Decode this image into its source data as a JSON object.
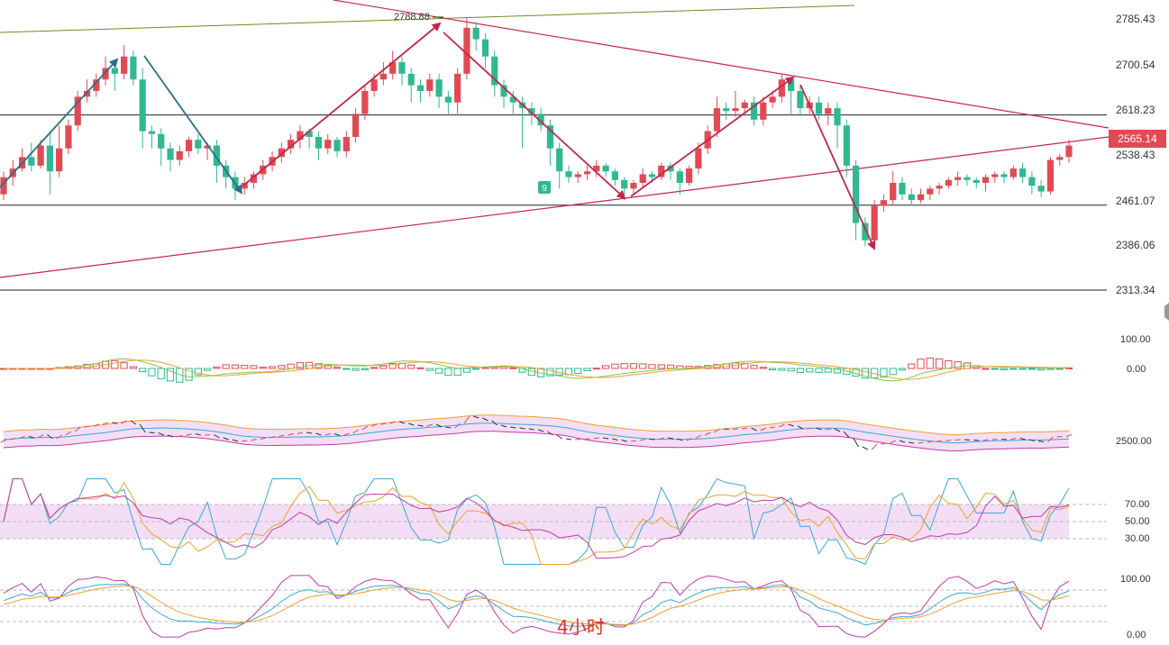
{
  "chart_data": {
    "type": "candlestick",
    "price_axis_ticks": [
      "2785.43",
      "2700.54",
      "2618.23",
      "2538.43",
      "2461.07",
      "2386.06",
      "2313.34"
    ],
    "current_price": "2565.14",
    "peak_label": "2788.88",
    "marker_label": "9",
    "caption": "4小时",
    "colors": {
      "up": "#e04a55",
      "down": "#2fb891",
      "trend": "#c0294a",
      "wave": "#2a6f86",
      "hline": "#222222",
      "current": "#e04a55"
    },
    "horizontal_levels": [
      2618.23,
      2461.07,
      2313.34
    ],
    "candles": [
      [
        2480,
        2510,
        2470,
        2520
      ],
      [
        2510,
        2525,
        2495,
        2540
      ],
      [
        2525,
        2545,
        2520,
        2560
      ],
      [
        2545,
        2530,
        2520,
        2570
      ],
      [
        2530,
        2565,
        2525,
        2575
      ],
      [
        2565,
        2520,
        2480,
        2590
      ],
      [
        2520,
        2560,
        2510,
        2600
      ],
      [
        2560,
        2600,
        2550,
        2610
      ],
      [
        2600,
        2650,
        2590,
        2660
      ],
      [
        2650,
        2660,
        2640,
        2680
      ],
      [
        2660,
        2680,
        2650,
        2690
      ],
      [
        2680,
        2700,
        2670,
        2720
      ],
      [
        2700,
        2690,
        2660,
        2710
      ],
      [
        2690,
        2720,
        2680,
        2740
      ],
      [
        2720,
        2680,
        2670,
        2730
      ],
      [
        2680,
        2590,
        2560,
        2700
      ],
      [
        2590,
        2585,
        2560,
        2600
      ],
      [
        2585,
        2560,
        2530,
        2595
      ],
      [
        2560,
        2540,
        2520,
        2570
      ],
      [
        2540,
        2555,
        2530,
        2565
      ],
      [
        2555,
        2575,
        2545,
        2580
      ],
      [
        2575,
        2560,
        2550,
        2585
      ],
      [
        2560,
        2565,
        2540,
        2570
      ],
      [
        2565,
        2530,
        2500,
        2575
      ],
      [
        2530,
        2510,
        2490,
        2540
      ],
      [
        2510,
        2490,
        2470,
        2520
      ],
      [
        2490,
        2500,
        2480,
        2510
      ],
      [
        2500,
        2515,
        2490,
        2520
      ],
      [
        2515,
        2530,
        2505,
        2540
      ],
      [
        2530,
        2545,
        2520,
        2555
      ],
      [
        2545,
        2560,
        2535,
        2570
      ],
      [
        2560,
        2575,
        2550,
        2585
      ],
      [
        2575,
        2590,
        2560,
        2600
      ],
      [
        2590,
        2580,
        2560,
        2595
      ],
      [
        2580,
        2560,
        2540,
        2590
      ],
      [
        2560,
        2575,
        2550,
        2585
      ],
      [
        2575,
        2555,
        2545,
        2580
      ],
      [
        2555,
        2580,
        2545,
        2590
      ],
      [
        2580,
        2620,
        2570,
        2630
      ],
      [
        2620,
        2660,
        2610,
        2670
      ],
      [
        2660,
        2680,
        2650,
        2690
      ],
      [
        2680,
        2690,
        2670,
        2710
      ],
      [
        2690,
        2710,
        2680,
        2730
      ],
      [
        2710,
        2690,
        2670,
        2720
      ],
      [
        2690,
        2670,
        2640,
        2700
      ],
      [
        2670,
        2660,
        2640,
        2680
      ],
      [
        2660,
        2680,
        2650,
        2690
      ],
      [
        2680,
        2650,
        2630,
        2690
      ],
      [
        2650,
        2640,
        2620,
        2660
      ],
      [
        2640,
        2690,
        2620,
        2700
      ],
      [
        2690,
        2770,
        2680,
        2788
      ],
      [
        2770,
        2750,
        2730,
        2780
      ],
      [
        2750,
        2720,
        2700,
        2760
      ],
      [
        2720,
        2670,
        2650,
        2730
      ],
      [
        2670,
        2650,
        2630,
        2680
      ],
      [
        2650,
        2640,
        2620,
        2660
      ],
      [
        2640,
        2630,
        2560,
        2650
      ],
      [
        2630,
        2620,
        2600,
        2640
      ],
      [
        2620,
        2600,
        2590,
        2630
      ],
      [
        2600,
        2560,
        2530,
        2610
      ],
      [
        2560,
        2520,
        2490,
        2570
      ],
      [
        2520,
        2510,
        2500,
        2530
      ],
      [
        2510,
        2515,
        2500,
        2520
      ],
      [
        2515,
        2520,
        2505,
        2530
      ],
      [
        2520,
        2530,
        2510,
        2540
      ],
      [
        2530,
        2520,
        2510,
        2535
      ],
      [
        2520,
        2505,
        2495,
        2525
      ],
      [
        2505,
        2490,
        2470,
        2510
      ],
      [
        2490,
        2500,
        2480,
        2505
      ],
      [
        2500,
        2515,
        2490,
        2525
      ],
      [
        2515,
        2510,
        2500,
        2520
      ],
      [
        2510,
        2530,
        2505,
        2535
      ],
      [
        2530,
        2520,
        2505,
        2535
      ],
      [
        2520,
        2500,
        2480,
        2525
      ],
      [
        2500,
        2525,
        2495,
        2530
      ],
      [
        2525,
        2560,
        2515,
        2570
      ],
      [
        2560,
        2590,
        2550,
        2600
      ],
      [
        2590,
        2630,
        2580,
        2650
      ],
      [
        2630,
        2625,
        2610,
        2640
      ],
      [
        2625,
        2630,
        2615,
        2660
      ],
      [
        2630,
        2640,
        2620,
        2645
      ],
      [
        2640,
        2610,
        2600,
        2650
      ],
      [
        2610,
        2640,
        2600,
        2650
      ],
      [
        2640,
        2650,
        2630,
        2660
      ],
      [
        2650,
        2680,
        2640,
        2690
      ],
      [
        2680,
        2660,
        2620,
        2685
      ],
      [
        2660,
        2630,
        2620,
        2670
      ],
      [
        2630,
        2640,
        2620,
        2650
      ],
      [
        2640,
        2620,
        2610,
        2650
      ],
      [
        2620,
        2630,
        2600,
        2640
      ],
      [
        2630,
        2600,
        2560,
        2640
      ],
      [
        2600,
        2530,
        2510,
        2610
      ],
      [
        2530,
        2430,
        2400,
        2540
      ],
      [
        2430,
        2400,
        2390,
        2440
      ],
      [
        2400,
        2460,
        2390,
        2470
      ],
      [
        2460,
        2470,
        2450,
        2480
      ],
      [
        2470,
        2500,
        2460,
        2520
      ],
      [
        2500,
        2480,
        2470,
        2510
      ],
      [
        2480,
        2470,
        2460,
        2490
      ],
      [
        2470,
        2480,
        2465,
        2490
      ],
      [
        2480,
        2490,
        2470,
        2495
      ],
      [
        2490,
        2495,
        2480,
        2500
      ],
      [
        2495,
        2505,
        2490,
        2510
      ],
      [
        2505,
        2510,
        2495,
        2520
      ],
      [
        2510,
        2505,
        2495,
        2515
      ],
      [
        2505,
        2500,
        2490,
        2510
      ],
      [
        2500,
        2510,
        2485,
        2515
      ],
      [
        2510,
        2515,
        2500,
        2520
      ],
      [
        2515,
        2510,
        2500,
        2520
      ],
      [
        2510,
        2525,
        2505,
        2530
      ],
      [
        2525,
        2510,
        2500,
        2535
      ],
      [
        2510,
        2495,
        2480,
        2520
      ],
      [
        2495,
        2485,
        2475,
        2505
      ],
      [
        2485,
        2540,
        2480,
        2545
      ],
      [
        2540,
        2545,
        2530,
        2550
      ],
      [
        2545,
        2565,
        2535,
        2575
      ]
    ]
  }
}
